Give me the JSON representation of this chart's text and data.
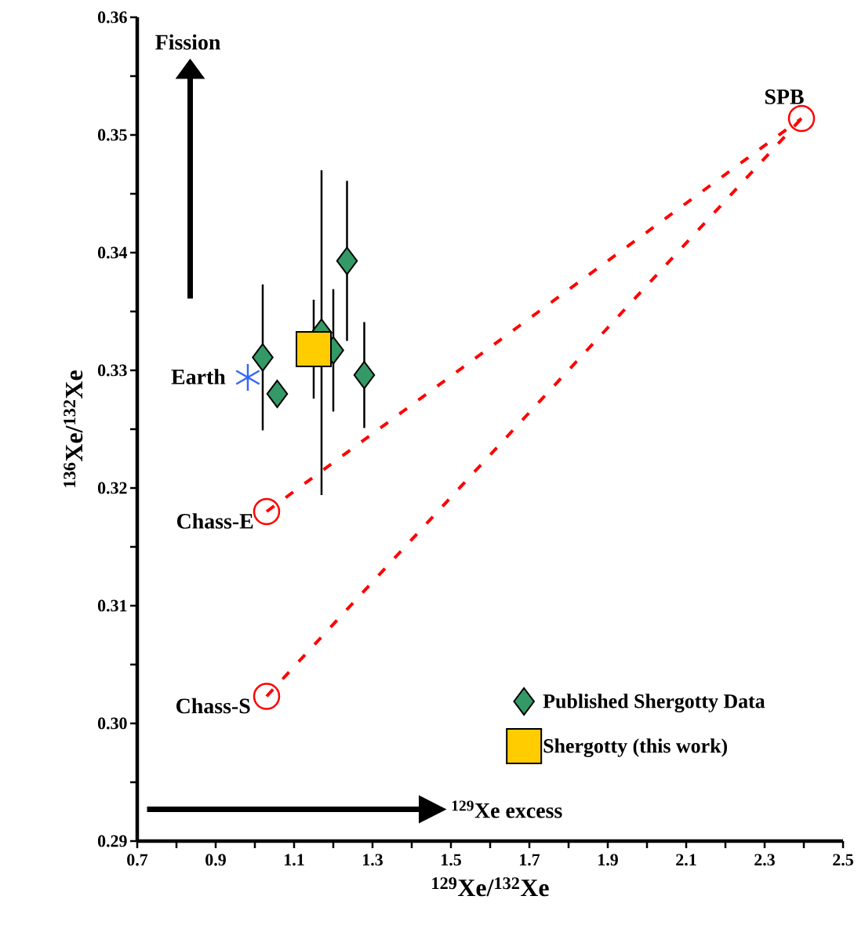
{
  "chart_data": {
    "type": "scatter",
    "xlabel": "$^{129}$Xe/$^{132}$Xe",
    "ylabel": "$^{136}$Xe/$^{132}$Xe",
    "xlim": [
      0.7,
      2.5
    ],
    "ylim": [
      0.29,
      0.36
    ],
    "xticks": [
      0.7,
      0.9,
      1.1,
      1.3,
      1.5,
      1.7,
      1.9,
      2.1,
      2.3,
      2.5
    ],
    "yticks": [
      0.29,
      {
        "value": 0.3,
        "label": "0.30"
      },
      0.31,
      0.32,
      0.33,
      0.34,
      0.35,
      0.36
    ],
    "grid": false,
    "legend": "bottom right",
    "series": [
      {
        "type": "line",
        "color": "#ff0000",
        "line_style": "dashed",
        "marker": "none",
        "x": [
          1.03,
          2.394
        ],
        "values": [
          0.318,
          0.3514
        ]
      },
      {
        "type": "line",
        "color": "#ff0000",
        "line_style": "dashed",
        "marker": "none",
        "x": [
          1.03,
          2.394
        ],
        "values": [
          0.3023,
          0.3514
        ]
      },
      {
        "color": "#ff0000",
        "marker": "circle",
        "x": [
          1.03,
          1.03,
          2.394
        ],
        "values": [
          0.318,
          0.3023,
          0.3514
        ]
      },
      {
        "color": "#3366ff",
        "marker": "cross",
        "x": [
          0.982
        ],
        "values": [
          0.3294
        ]
      },
      {
        "name": "Published Shergotty Data",
        "color": "#339966",
        "marker": "diamond",
        "x": [
          1.02,
          1.057,
          1.235,
          1.17,
          1.2,
          1.279
        ],
        "values": [
          0.3311,
          0.328,
          0.3393,
          0.3332,
          0.3317,
          0.3296
        ],
        "errors": [
          0.0062,
          null,
          0.0068,
          0.0138,
          0.0052,
          0.0045
        ]
      },
      {
        "name": "Shergotty (this work)",
        "color": "#ffcc00",
        "marker": "square",
        "x": [
          1.15
        ],
        "values": [
          0.3318
        ],
        "errors": [
          0.0042
        ]
      }
    ],
    "annotations": [
      {
        "text": "Earth",
        "x": 0.982,
        "y": 0.3294
      },
      {
        "text": "Chass-E",
        "x": 1.03,
        "y": 0.318
      },
      {
        "text": "Chass-S",
        "x": 1.03,
        "y": 0.3023
      },
      {
        "text": "SPB",
        "x": 2.394,
        "y": 0.3514
      },
      "Fission",
      "$^{129}$Xe excess"
    ]
  }
}
